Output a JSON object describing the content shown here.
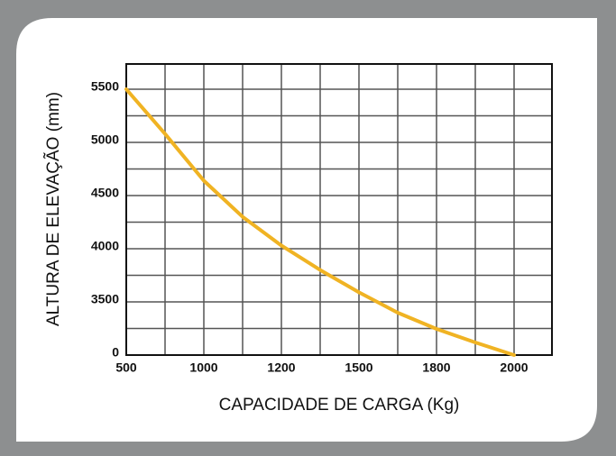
{
  "chart_data": {
    "type": "line",
    "x_label": "CAPACIDADE DE CARGA (Kg)",
    "y_label": "ALTURA DE ELEVAÇÃO (mm)",
    "x": [
      500,
      750,
      1000,
      1100,
      1200,
      1350,
      1500,
      1650,
      1800,
      1900,
      2000
    ],
    "series": [
      {
        "color": "#f0b323",
        "values": [
          5500,
          5080,
          4640,
          4300,
          4030,
          3800,
          3590,
          2790,
          1720,
          830,
          0
        ]
      }
    ],
    "xlim": [
      500,
      2100
    ],
    "xticks": [
      500,
      1000,
      1200,
      1500,
      1800,
      2000
    ],
    "ylim": [
      0,
      5750
    ],
    "yticks": [
      0,
      3500,
      4000,
      4500,
      5000,
      5500
    ],
    "grid": true
  }
}
